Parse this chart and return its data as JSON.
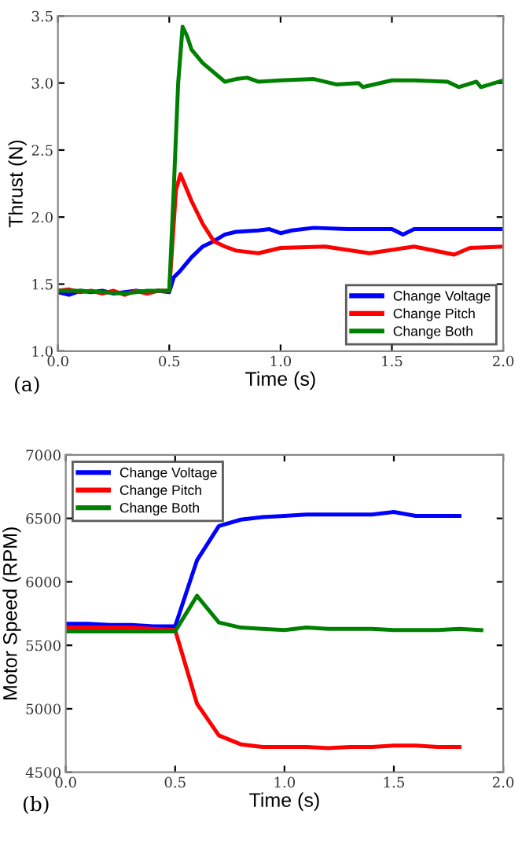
{
  "chart_data": [
    {
      "type": "line",
      "xlabel": "Time (s)",
      "ylabel": "Thrust (N)",
      "annotations": [
        "(a)"
      ],
      "xlim": [
        0.0,
        2.0
      ],
      "ylim": [
        1.0,
        3.5
      ],
      "xticks": [
        {
          "value": 0,
          "label": "0.0"
        },
        {
          "value": 0.5,
          "label": "0.5"
        },
        {
          "value": 1,
          "label": "1.0"
        },
        {
          "value": 1.5,
          "label": "1.5"
        },
        {
          "value": 2,
          "label": "2.0"
        }
      ],
      "yticks": [
        {
          "value": 1,
          "label": "1.0"
        },
        {
          "value": 1.5,
          "label": "1.5"
        },
        {
          "value": 2,
          "label": "2.0"
        },
        {
          "value": 2.5,
          "label": "2.5"
        },
        {
          "value": 3,
          "label": "3.0"
        },
        {
          "value": 3.5,
          "label": "3.5"
        }
      ],
      "legend": "bottom right",
      "series": [
        {
          "name": "Change Voltage",
          "color": "#0000ff",
          "x": [
            0.0,
            0.05,
            0.1,
            0.15,
            0.2,
            0.25,
            0.3,
            0.35,
            0.4,
            0.45,
            0.5,
            0.52,
            0.55,
            0.6,
            0.65,
            0.7,
            0.75,
            0.8,
            0.9,
            0.95,
            1.0,
            1.05,
            1.15,
            1.3,
            1.5,
            1.55,
            1.6,
            1.8,
            2.0
          ],
          "values": [
            1.44,
            1.42,
            1.45,
            1.44,
            1.45,
            1.43,
            1.44,
            1.45,
            1.44,
            1.45,
            1.44,
            1.55,
            1.6,
            1.7,
            1.78,
            1.82,
            1.87,
            1.89,
            1.9,
            1.91,
            1.88,
            1.9,
            1.92,
            1.91,
            1.91,
            1.87,
            1.91,
            1.91,
            1.91
          ]
        },
        {
          "name": "Change Pitch",
          "color": "#ff0000",
          "x": [
            0.0,
            0.05,
            0.1,
            0.15,
            0.2,
            0.25,
            0.3,
            0.35,
            0.4,
            0.45,
            0.5,
            0.53,
            0.55,
            0.6,
            0.65,
            0.7,
            0.75,
            0.8,
            0.9,
            1.0,
            1.2,
            1.4,
            1.6,
            1.78,
            1.85,
            2.0
          ],
          "values": [
            1.45,
            1.46,
            1.44,
            1.45,
            1.43,
            1.45,
            1.42,
            1.45,
            1.43,
            1.45,
            1.45,
            2.2,
            2.32,
            2.12,
            1.95,
            1.82,
            1.78,
            1.75,
            1.73,
            1.77,
            1.78,
            1.73,
            1.78,
            1.72,
            1.77,
            1.78
          ]
        },
        {
          "name": "Change Both",
          "color": "#008000",
          "x": [
            0.0,
            0.1,
            0.2,
            0.3,
            0.4,
            0.5,
            0.52,
            0.54,
            0.56,
            0.58,
            0.6,
            0.65,
            0.7,
            0.75,
            0.8,
            0.85,
            0.9,
            1.0,
            1.15,
            1.25,
            1.35,
            1.37,
            1.5,
            1.6,
            1.75,
            1.8,
            1.88,
            1.9,
            2.0
          ],
          "values": [
            1.45,
            1.45,
            1.44,
            1.43,
            1.45,
            1.45,
            2.2,
            3.0,
            3.42,
            3.35,
            3.25,
            3.15,
            3.08,
            3.01,
            3.03,
            3.04,
            3.01,
            3.02,
            3.03,
            2.99,
            3.0,
            2.97,
            3.02,
            3.02,
            3.01,
            2.97,
            3.01,
            2.97,
            3.02
          ]
        }
      ]
    },
    {
      "type": "line",
      "xlabel": "Time (s)",
      "ylabel": "Motor Speed (RPM)",
      "annotations": [
        "(b)"
      ],
      "xlim": [
        0.0,
        2.0
      ],
      "ylim": [
        4500,
        7000
      ],
      "xticks": [
        {
          "value": 0,
          "label": "0.0"
        },
        {
          "value": 0.5,
          "label": "0.5"
        },
        {
          "value": 1,
          "label": "1.0"
        },
        {
          "value": 1.5,
          "label": "1.5"
        },
        {
          "value": 2,
          "label": "2.0"
        }
      ],
      "yticks": [
        4500,
        5000,
        5500,
        6000,
        6500,
        7000
      ],
      "legend": "top left",
      "series": [
        {
          "name": "Change Voltage",
          "color": "#0000ff",
          "x": [
            0.0,
            0.1,
            0.2,
            0.3,
            0.4,
            0.5,
            0.6,
            0.7,
            0.8,
            0.9,
            1.0,
            1.1,
            1.2,
            1.3,
            1.4,
            1.5,
            1.6,
            1.7,
            1.8
          ],
          "values": [
            5670,
            5670,
            5660,
            5660,
            5650,
            5650,
            6170,
            6440,
            6490,
            6510,
            6520,
            6530,
            6530,
            6530,
            6530,
            6550,
            6520,
            6520,
            6520
          ]
        },
        {
          "name": "Change Pitch",
          "color": "#ff0000",
          "x": [
            0.0,
            0.1,
            0.2,
            0.3,
            0.4,
            0.5,
            0.6,
            0.7,
            0.8,
            0.9,
            1.0,
            1.1,
            1.2,
            1.3,
            1.4,
            1.5,
            1.6,
            1.7,
            1.8
          ],
          "values": [
            5640,
            5640,
            5640,
            5640,
            5630,
            5620,
            5040,
            4790,
            4720,
            4700,
            4700,
            4700,
            4690,
            4700,
            4700,
            4710,
            4710,
            4700,
            4700
          ]
        },
        {
          "name": "Change Both",
          "color": "#008000",
          "x": [
            0.0,
            0.1,
            0.2,
            0.3,
            0.4,
            0.5,
            0.6,
            0.7,
            0.8,
            0.9,
            1.0,
            1.1,
            1.2,
            1.3,
            1.4,
            1.5,
            1.6,
            1.7,
            1.8,
            1.9
          ],
          "values": [
            5610,
            5610,
            5610,
            5610,
            5610,
            5610,
            5890,
            5680,
            5640,
            5630,
            5620,
            5640,
            5630,
            5630,
            5630,
            5620,
            5620,
            5620,
            5630,
            5620
          ]
        }
      ]
    }
  ]
}
